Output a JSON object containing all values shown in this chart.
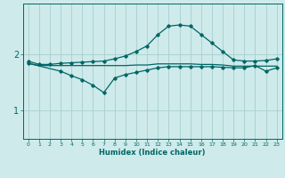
{
  "xlabel": "Humidex (Indice chaleur)",
  "background_color": "#ceeaea",
  "line_color": "#006666",
  "grid_color": "#aacece",
  "xlim": [
    -0.5,
    23.5
  ],
  "ylim": [
    0.5,
    2.9
  ],
  "yticks": [
    1,
    2
  ],
  "xticks": [
    0,
    1,
    2,
    3,
    4,
    5,
    6,
    7,
    8,
    9,
    10,
    11,
    12,
    13,
    14,
    15,
    16,
    17,
    18,
    19,
    20,
    21,
    22,
    23
  ],
  "line1_x": [
    0,
    1,
    2,
    3,
    4,
    5,
    6,
    7,
    8,
    9,
    10,
    11,
    12,
    13,
    14,
    15,
    16,
    17,
    18,
    19,
    20,
    21,
    22,
    23
  ],
  "line1_y": [
    1.88,
    1.82,
    1.82,
    1.84,
    1.85,
    1.86,
    1.87,
    1.88,
    1.92,
    1.97,
    2.05,
    2.15,
    2.35,
    2.5,
    2.52,
    2.5,
    2.35,
    2.2,
    2.05,
    1.9,
    1.88,
    1.88,
    1.89,
    1.92
  ],
  "line2_x": [
    0,
    1,
    2,
    3,
    4,
    5,
    6,
    7,
    8,
    9,
    10,
    11,
    12,
    13,
    14,
    15,
    16,
    17,
    18,
    19,
    20,
    21,
    22,
    23
  ],
  "line2_y": [
    1.84,
    1.8,
    1.8,
    1.8,
    1.8,
    1.8,
    1.8,
    1.8,
    1.8,
    1.8,
    1.81,
    1.81,
    1.83,
    1.83,
    1.83,
    1.83,
    1.82,
    1.82,
    1.81,
    1.79,
    1.79,
    1.79,
    1.79,
    1.79
  ],
  "line3_x": [
    0,
    3,
    4,
    5,
    6,
    7,
    8,
    9,
    10,
    11,
    12,
    13,
    14,
    15,
    16,
    17,
    18,
    19,
    20,
    21,
    22,
    23
  ],
  "line3_y": [
    1.84,
    1.7,
    1.62,
    1.55,
    1.45,
    1.32,
    1.58,
    1.64,
    1.68,
    1.72,
    1.76,
    1.78,
    1.78,
    1.78,
    1.78,
    1.78,
    1.77,
    1.76,
    1.76,
    1.8,
    1.7,
    1.76
  ]
}
